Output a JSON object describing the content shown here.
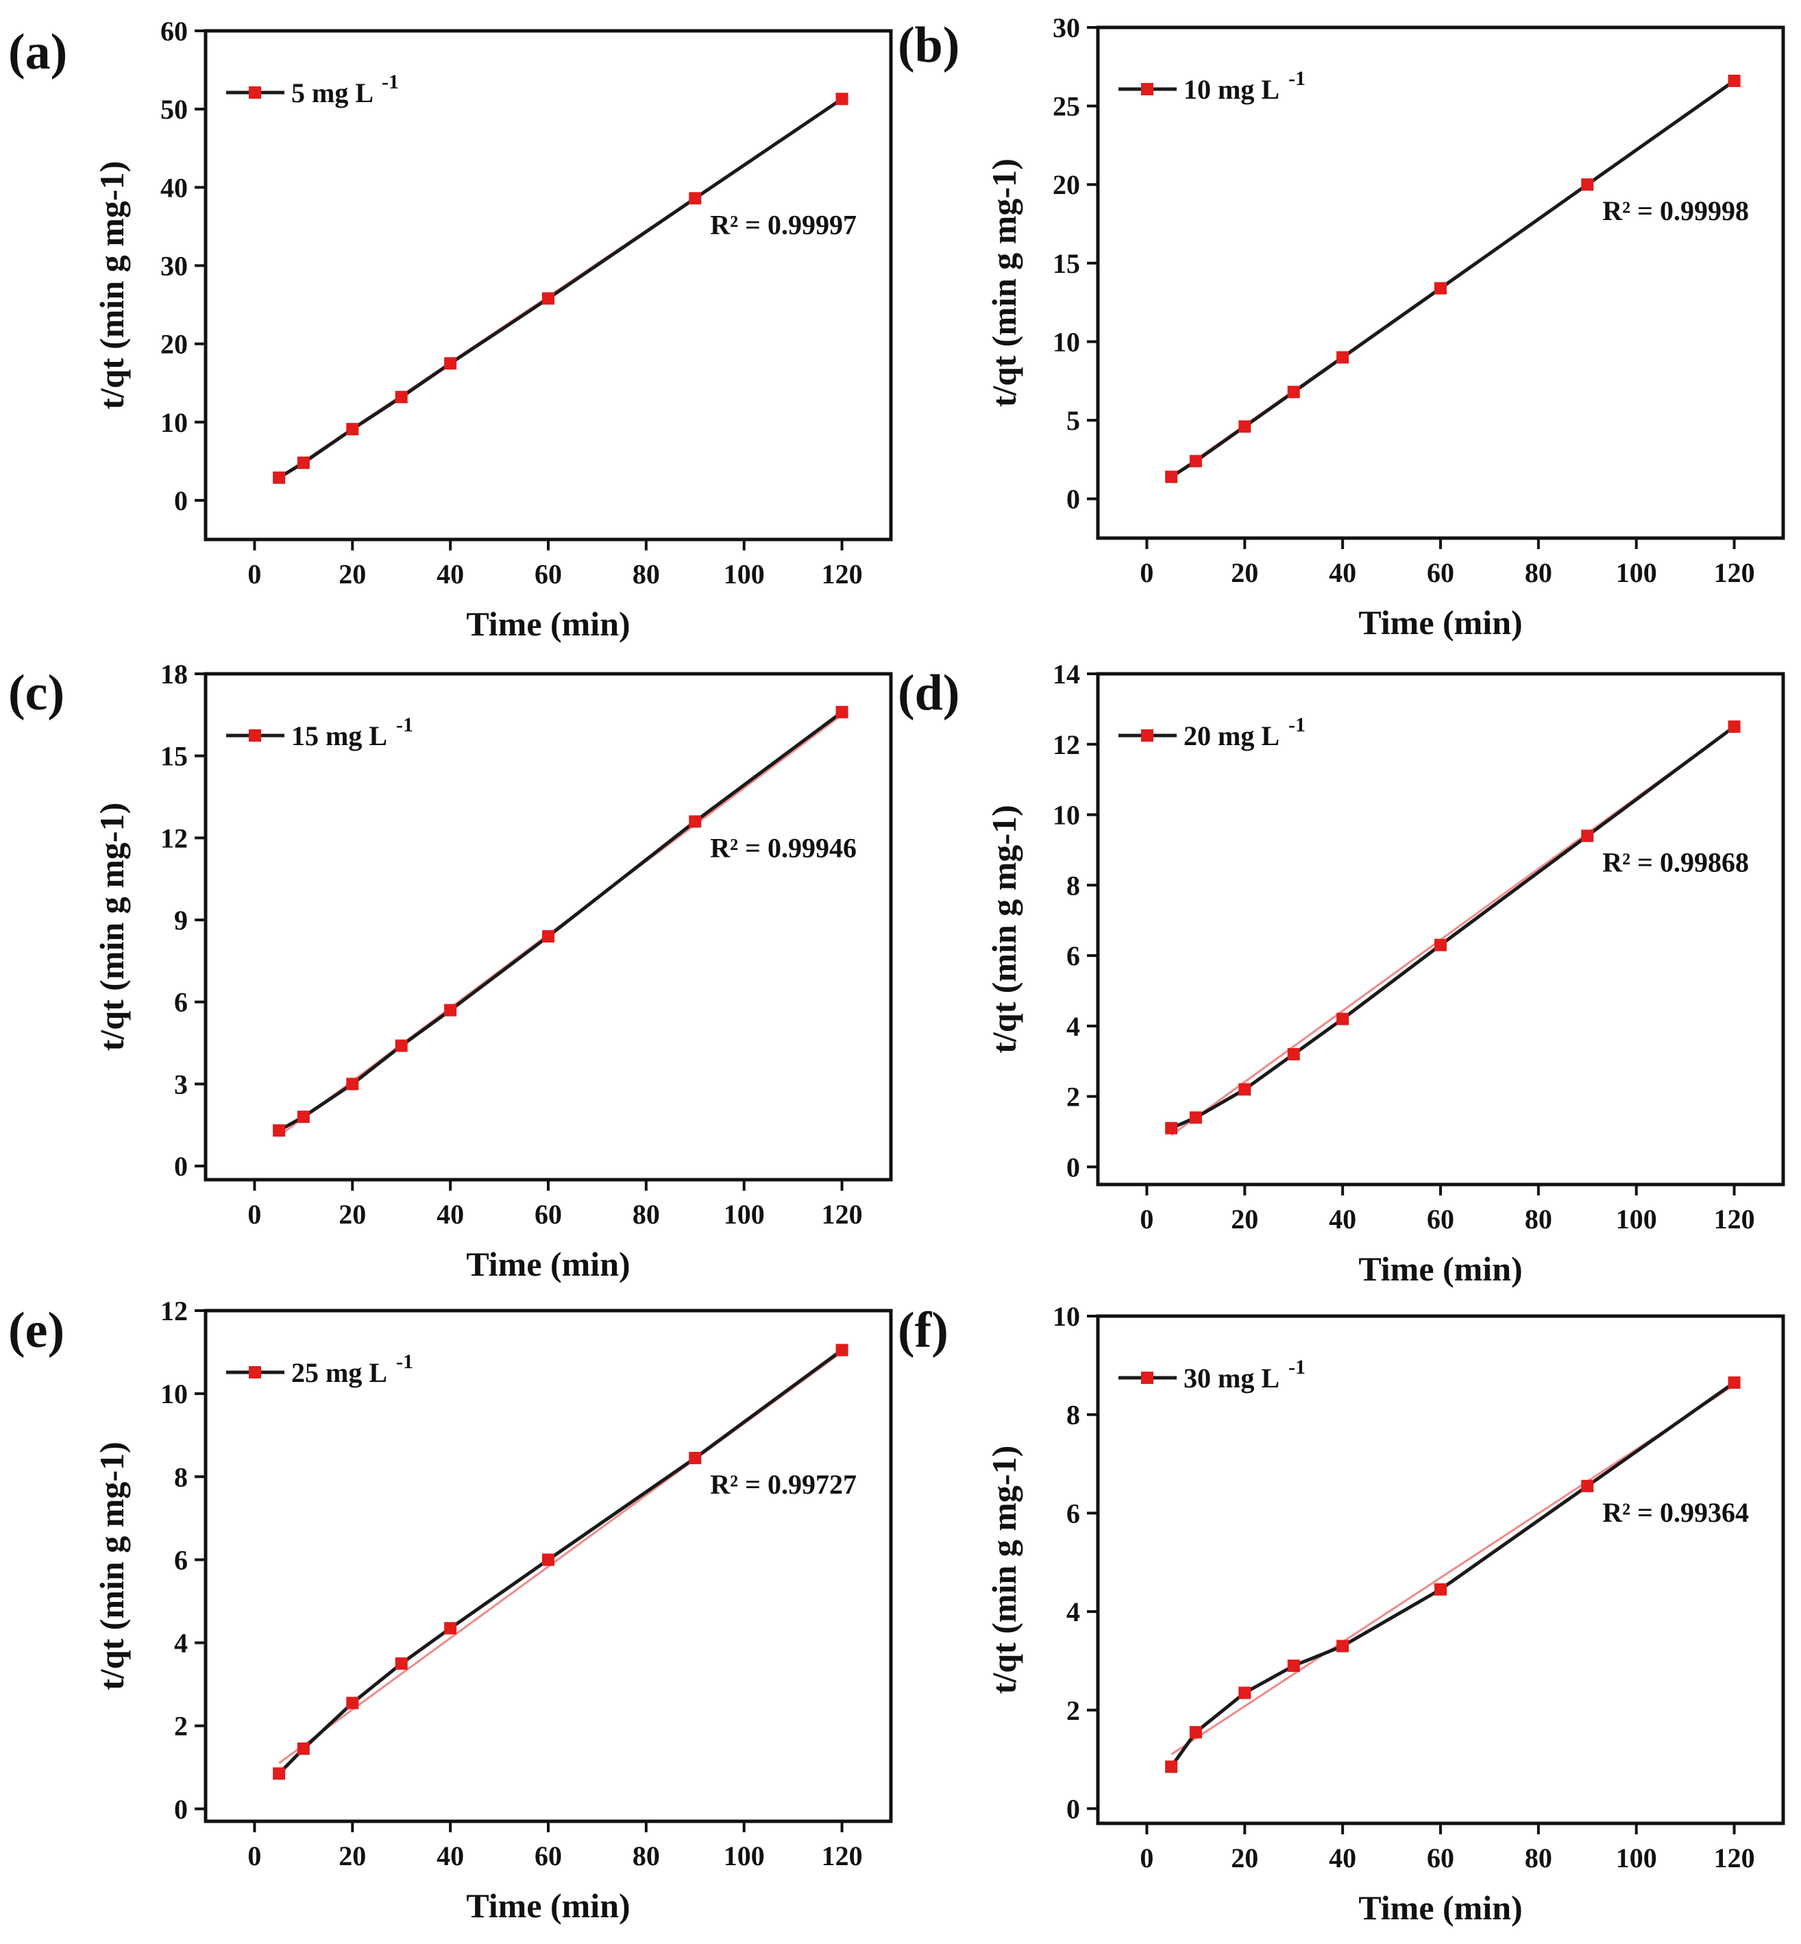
{
  "figure": {
    "panels": [
      "(a)",
      "(b)",
      "(c)",
      "(d)",
      "(e)",
      "(f)"
    ]
  },
  "colors": {
    "axis": "#111111",
    "data_line": "#1a1a1a",
    "marker": "#e21b1b",
    "fit_line": "#f08a8a",
    "background": "#ffffff"
  },
  "chart_data": [
    {
      "panel": "(a)",
      "type": "line",
      "xlabel": "Time (min)",
      "ylabel": "t/qt (min g mg-1)",
      "xlim": [
        -10,
        130
      ],
      "ylim": [
        -5,
        60
      ],
      "xticks": [
        0,
        20,
        40,
        60,
        80,
        100,
        120
      ],
      "yticks": [
        0,
        10,
        20,
        30,
        40,
        50,
        60
      ],
      "legend": {
        "label": "5 mg L",
        "superscript": "-1",
        "position": "top-left"
      },
      "annotation": "R² = 0.99997",
      "series": [
        {
          "name": "5 mg L-1",
          "x": [
            5,
            10,
            20,
            30,
            40,
            60,
            90,
            120
          ],
          "y": [
            2.9,
            4.8,
            9.1,
            13.2,
            17.5,
            25.8,
            38.6,
            51.3
          ]
        }
      ],
      "fit": {
        "x": [
          5,
          120
        ],
        "y": [
          2.9,
          51.3
        ]
      }
    },
    {
      "panel": "(b)",
      "type": "line",
      "xlabel": "Time (min)",
      "ylabel": "t/qt (min g mg-1)",
      "xlim": [
        -10,
        130
      ],
      "ylim": [
        -2.5,
        30
      ],
      "xticks": [
        0,
        20,
        40,
        60,
        80,
        100,
        120
      ],
      "yticks": [
        0,
        5,
        10,
        15,
        20,
        25,
        30
      ],
      "legend": {
        "label": "10 mg L",
        "superscript": "-1",
        "position": "top-left"
      },
      "annotation": "R² = 0.99998",
      "series": [
        {
          "name": "10 mg L-1",
          "x": [
            5,
            10,
            20,
            30,
            40,
            60,
            90,
            120
          ],
          "y": [
            1.4,
            2.4,
            4.6,
            6.8,
            9.0,
            13.4,
            20.0,
            26.6
          ]
        }
      ],
      "fit": {
        "x": [
          5,
          120
        ],
        "y": [
          1.4,
          26.6
        ]
      }
    },
    {
      "panel": "(c)",
      "type": "line",
      "xlabel": "Time (min)",
      "ylabel": "t/qt (min g mg-1)",
      "xlim": [
        -10,
        130
      ],
      "ylim": [
        -0.5,
        18
      ],
      "xticks": [
        0,
        20,
        40,
        60,
        80,
        100,
        120
      ],
      "yticks": [
        0,
        3,
        6,
        9,
        12,
        15,
        18
      ],
      "legend": {
        "label": "15 mg L",
        "superscript": "-1",
        "position": "top-left"
      },
      "annotation": "R² = 0.99946",
      "series": [
        {
          "name": "15 mg L-1",
          "x": [
            5,
            10,
            20,
            30,
            40,
            60,
            90,
            120
          ],
          "y": [
            1.3,
            1.8,
            3.0,
            4.4,
            5.7,
            8.4,
            12.6,
            16.6
          ]
        }
      ],
      "fit": {
        "x": [
          5,
          120
        ],
        "y": [
          1.1,
          16.5
        ]
      }
    },
    {
      "panel": "(d)",
      "type": "line",
      "xlabel": "Time (min)",
      "ylabel": "t/qt (min g mg-1)",
      "xlim": [
        -10,
        130
      ],
      "ylim": [
        -0.5,
        14
      ],
      "xticks": [
        0,
        20,
        40,
        60,
        80,
        100,
        120
      ],
      "yticks": [
        0,
        2,
        4,
        6,
        8,
        10,
        12,
        14
      ],
      "legend": {
        "label": "20 mg L",
        "superscript": "-1",
        "position": "top-left"
      },
      "annotation": "R² = 0.99868",
      "series": [
        {
          "name": "20 mg L-1",
          "x": [
            5,
            10,
            20,
            30,
            40,
            60,
            90,
            120
          ],
          "y": [
            1.1,
            1.4,
            2.2,
            3.2,
            4.2,
            6.3,
            9.4,
            12.5
          ]
        }
      ],
      "fit": {
        "x": [
          5,
          120
        ],
        "y": [
          0.9,
          12.5
        ]
      }
    },
    {
      "panel": "(e)",
      "type": "line",
      "xlabel": "Time (min)",
      "ylabel": "t/qt (min g mg-1)",
      "xlim": [
        -10,
        130
      ],
      "ylim": [
        -0.3,
        12
      ],
      "xticks": [
        0,
        20,
        40,
        60,
        80,
        100,
        120
      ],
      "yticks": [
        0,
        2,
        4,
        6,
        8,
        10,
        12
      ],
      "legend": {
        "label": "25 mg L",
        "superscript": "-1",
        "position": "top-left"
      },
      "annotation": "R² = 0.99727",
      "series": [
        {
          "name": "25 mg L-1",
          "x": [
            5,
            10,
            20,
            30,
            40,
            60,
            90,
            120
          ],
          "y": [
            0.85,
            1.45,
            2.55,
            3.5,
            4.35,
            6.0,
            8.45,
            11.05
          ]
        }
      ],
      "fit": {
        "x": [
          5,
          120
        ],
        "y": [
          1.1,
          11.0
        ]
      }
    },
    {
      "panel": "(f)",
      "type": "line",
      "xlabel": "Time (min)",
      "ylabel": "t/qt (min g mg-1)",
      "xlim": [
        -10,
        130
      ],
      "ylim": [
        -0.3,
        10
      ],
      "xticks": [
        0,
        20,
        40,
        60,
        80,
        100,
        120
      ],
      "yticks": [
        0,
        2,
        4,
        6,
        8,
        10
      ],
      "legend": {
        "label": "30 mg L",
        "superscript": "-1",
        "position": "top-left"
      },
      "annotation": "R² = 0.99364",
      "series": [
        {
          "name": "30 mg L-1",
          "x": [
            5,
            10,
            20,
            30,
            40,
            60,
            90,
            120
          ],
          "y": [
            0.85,
            1.55,
            2.35,
            2.9,
            3.3,
            4.45,
            6.55,
            8.65
          ]
        }
      ],
      "fit": {
        "x": [
          5,
          120
        ],
        "y": [
          1.1,
          8.6
        ]
      }
    }
  ]
}
